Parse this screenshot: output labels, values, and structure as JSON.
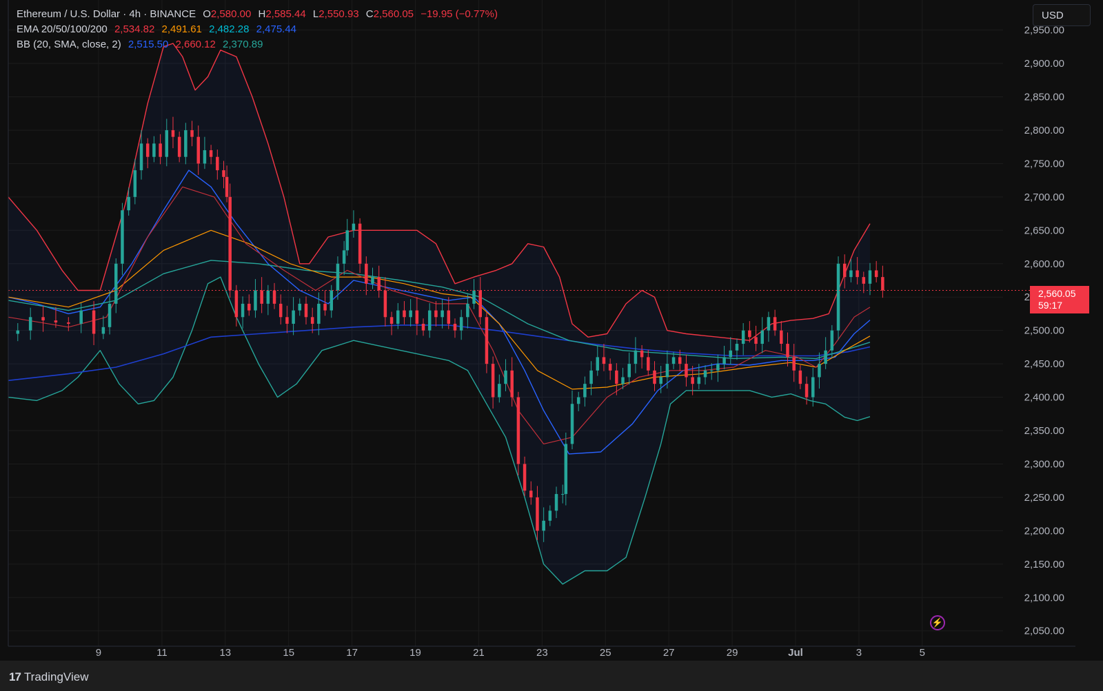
{
  "header": {
    "symbol": "Ethereum / U.S. Dollar · 4h · BINANCE",
    "open_label": "O",
    "open": "2,580.00",
    "high_label": "H",
    "high": "2,585.44",
    "low_label": "L",
    "low": "2,550.93",
    "close_label": "C",
    "close": "2,560.05",
    "change": "−19.95 (−0.77%)",
    "ema_label": "EMA 20/50/100/200",
    "ema20": "2,534.82",
    "ema50": "2,491.61",
    "ema100": "2,482.28",
    "ema200": "2,475.44",
    "bb_label": "BB (20, SMA, close, 2)",
    "bb_basis": "2,515.50",
    "bb_upper": "2,660.12",
    "bb_lower": "2,370.89"
  },
  "currency": "USD",
  "price_badge": {
    "price": "2,560.05",
    "countdown": "59:17"
  },
  "brand": {
    "logo_glyph": "17",
    "name": "TradingView"
  },
  "colors": {
    "up": "#26a69a",
    "down": "#f23645",
    "ema20": "#f23645",
    "ema50": "#ff9800",
    "ema100": "#00bcd4",
    "ema200": "#2962ff",
    "bb_basis": "#2962ff",
    "bb_upper": "#f23645",
    "bb_lower": "#26a69a"
  },
  "chart_data": {
    "type": "candlestick",
    "x_ticks": [
      {
        "label": "9",
        "t": 0.95
      },
      {
        "label": "11",
        "t": 2.95
      },
      {
        "label": "13",
        "t": 4.95
      },
      {
        "label": "15",
        "t": 6.95
      },
      {
        "label": "17",
        "t": 8.95
      },
      {
        "label": "19",
        "t": 10.95
      },
      {
        "label": "21",
        "t": 12.95
      },
      {
        "label": "23",
        "t": 14.95
      },
      {
        "label": "25",
        "t": 16.95
      },
      {
        "label": "27",
        "t": 18.95
      },
      {
        "label": "29",
        "t": 20.95
      },
      {
        "label": "Jul",
        "t": 22.95
      },
      {
        "label": "3",
        "t": 24.95
      },
      {
        "label": "5",
        "t": 26.95
      }
    ],
    "y_ticks": [
      "2,050.00",
      "2,100.00",
      "2,150.00",
      "2,200.00",
      "2,250.00",
      "2,300.00",
      "2,350.00",
      "2,400.00",
      "2,450.00",
      "2,500.00",
      "2,550.00",
      "2,600.00",
      "2,650.00",
      "2,700.00",
      "2,750.00",
      "2,800.00",
      "2,850.00",
      "2,900.00",
      "2,950.00"
    ],
    "y_range": [
      2027,
      2995
    ],
    "x_range": [
      -1.9,
      29.5
    ],
    "last_price": 2560.05,
    "closes": [
      [
        -1.9,
        2495
      ],
      [
        -1.6,
        2500
      ],
      [
        -1.2,
        2520
      ],
      [
        -0.8,
        2515
      ],
      [
        -0.4,
        2512
      ],
      [
        0,
        2510
      ],
      [
        0.4,
        2530
      ],
      [
        0.8,
        2495
      ],
      [
        1.1,
        2505
      ],
      [
        1.3,
        2540
      ],
      [
        1.5,
        2600
      ],
      [
        1.7,
        2680
      ],
      [
        1.9,
        2700
      ],
      [
        2.1,
        2740
      ],
      [
        2.3,
        2780
      ],
      [
        2.5,
        2760
      ],
      [
        2.7,
        2780
      ],
      [
        2.9,
        2760
      ],
      [
        3.1,
        2800
      ],
      [
        3.3,
        2790
      ],
      [
        3.5,
        2760
      ],
      [
        3.7,
        2800
      ],
      [
        3.9,
        2790
      ],
      [
        4.1,
        2750
      ],
      [
        4.3,
        2770
      ],
      [
        4.5,
        2760
      ],
      [
        4.7,
        2740
      ],
      [
        4.9,
        2730
      ],
      [
        5.0,
        2700
      ],
      [
        5.1,
        2560
      ],
      [
        5.3,
        2520
      ],
      [
        5.5,
        2540
      ],
      [
        5.7,
        2530
      ],
      [
        5.9,
        2560
      ],
      [
        6.1,
        2540
      ],
      [
        6.3,
        2560
      ],
      [
        6.5,
        2540
      ],
      [
        6.7,
        2520
      ],
      [
        6.9,
        2510
      ],
      [
        7.1,
        2530
      ],
      [
        7.3,
        2540
      ],
      [
        7.5,
        2520
      ],
      [
        7.7,
        2510
      ],
      [
        7.9,
        2540
      ],
      [
        8.1,
        2530
      ],
      [
        8.3,
        2560
      ],
      [
        8.5,
        2600
      ],
      [
        8.7,
        2620
      ],
      [
        8.8,
        2650
      ],
      [
        9.0,
        2660
      ],
      [
        9.2,
        2600
      ],
      [
        9.4,
        2570
      ],
      [
        9.6,
        2580
      ],
      [
        9.8,
        2560
      ],
      [
        10.0,
        2520
      ],
      [
        10.2,
        2510
      ],
      [
        10.4,
        2530
      ],
      [
        10.6,
        2520
      ],
      [
        10.8,
        2530
      ],
      [
        11.0,
        2510
      ],
      [
        11.2,
        2500
      ],
      [
        11.4,
        2530
      ],
      [
        11.6,
        2520
      ],
      [
        11.8,
        2530
      ],
      [
        12.0,
        2510
      ],
      [
        12.2,
        2500
      ],
      [
        12.4,
        2520
      ],
      [
        12.6,
        2540
      ],
      [
        12.8,
        2560
      ],
      [
        13.0,
        2520
      ],
      [
        13.2,
        2450
      ],
      [
        13.4,
        2400
      ],
      [
        13.6,
        2420
      ],
      [
        13.8,
        2440
      ],
      [
        14.0,
        2400
      ],
      [
        14.2,
        2300
      ],
      [
        14.4,
        2260
      ],
      [
        14.6,
        2250
      ],
      [
        14.8,
        2200
      ],
      [
        15.0,
        2215
      ],
      [
        15.2,
        2230
      ],
      [
        15.4,
        2255
      ],
      [
        15.6,
        2255
      ],
      [
        15.7,
        2330
      ],
      [
        15.9,
        2390
      ],
      [
        16.1,
        2400
      ],
      [
        16.3,
        2420
      ],
      [
        16.5,
        2440
      ],
      [
        16.7,
        2460
      ],
      [
        16.9,
        2450
      ],
      [
        17.1,
        2440
      ],
      [
        17.3,
        2420
      ],
      [
        17.5,
        2430
      ],
      [
        17.7,
        2450
      ],
      [
        17.9,
        2470
      ],
      [
        18.1,
        2460
      ],
      [
        18.3,
        2440
      ],
      [
        18.5,
        2420
      ],
      [
        18.7,
        2430
      ],
      [
        18.9,
        2450
      ],
      [
        19.1,
        2460
      ],
      [
        19.3,
        2450
      ],
      [
        19.5,
        2430
      ],
      [
        19.7,
        2420
      ],
      [
        19.9,
        2430
      ],
      [
        20.1,
        2440
      ],
      [
        20.3,
        2440
      ],
      [
        20.5,
        2450
      ],
      [
        20.7,
        2460
      ],
      [
        20.9,
        2470
      ],
      [
        21.1,
        2480
      ],
      [
        21.3,
        2500
      ],
      [
        21.5,
        2490
      ],
      [
        21.7,
        2480
      ],
      [
        21.9,
        2500
      ],
      [
        22.1,
        2520
      ],
      [
        22.3,
        2500
      ],
      [
        22.5,
        2480
      ],
      [
        22.7,
        2460
      ],
      [
        22.9,
        2440
      ],
      [
        23.1,
        2420
      ],
      [
        23.3,
        2400
      ],
      [
        23.5,
        2430
      ],
      [
        23.7,
        2450
      ],
      [
        23.9,
        2470
      ],
      [
        24.1,
        2500
      ],
      [
        24.3,
        2600
      ],
      [
        24.5,
        2580
      ],
      [
        24.7,
        2590
      ],
      [
        24.9,
        2580
      ],
      [
        25.1,
        2570
      ],
      [
        25.3,
        2590
      ],
      [
        25.5,
        2580
      ],
      [
        25.7,
        2560
      ]
    ],
    "ema20": [
      [
        -1.9,
        2520
      ],
      [
        0,
        2505
      ],
      [
        1.2,
        2520
      ],
      [
        2.5,
        2640
      ],
      [
        3.6,
        2715
      ],
      [
        4.6,
        2700
      ],
      [
        5.6,
        2630
      ],
      [
        6.8,
        2590
      ],
      [
        7.8,
        2560
      ],
      [
        8.8,
        2590
      ],
      [
        10.2,
        2560
      ],
      [
        11.6,
        2540
      ],
      [
        12.6,
        2540
      ],
      [
        13.4,
        2470
      ],
      [
        14.2,
        2380
      ],
      [
        15.0,
        2330
      ],
      [
        15.9,
        2340
      ],
      [
        17.0,
        2400
      ],
      [
        18.0,
        2430
      ],
      [
        19.0,
        2440
      ],
      [
        20.0,
        2440
      ],
      [
        21.0,
        2445
      ],
      [
        22.0,
        2470
      ],
      [
        23.0,
        2460
      ],
      [
        23.6,
        2445
      ],
      [
        24.2,
        2480
      ],
      [
        24.8,
        2520
      ],
      [
        25.3,
        2534.82
      ]
    ],
    "ema50": [
      [
        -1.9,
        2550
      ],
      [
        0,
        2535
      ],
      [
        1.5,
        2560
      ],
      [
        3.0,
        2620
      ],
      [
        4.5,
        2650
      ],
      [
        5.7,
        2630
      ],
      [
        7.0,
        2600
      ],
      [
        8.3,
        2580
      ],
      [
        9.5,
        2580
      ],
      [
        10.6,
        2570
      ],
      [
        11.8,
        2555
      ],
      [
        12.7,
        2550
      ],
      [
        13.6,
        2510
      ],
      [
        14.8,
        2440
      ],
      [
        15.9,
        2412
      ],
      [
        17.0,
        2415
      ],
      [
        18.5,
        2430
      ],
      [
        20.0,
        2435
      ],
      [
        21.5,
        2445
      ],
      [
        22.8,
        2452
      ],
      [
        23.6,
        2445
      ],
      [
        24.5,
        2470
      ],
      [
        25.3,
        2491.61
      ]
    ],
    "ema100": [
      [
        -1.9,
        2545
      ],
      [
        0,
        2530
      ],
      [
        1.5,
        2545
      ],
      [
        3.0,
        2585
      ],
      [
        4.5,
        2605
      ],
      [
        6.0,
        2600
      ],
      [
        7.5,
        2590
      ],
      [
        9.0,
        2585
      ],
      [
        10.5,
        2575
      ],
      [
        11.8,
        2565
      ],
      [
        13.0,
        2550
      ],
      [
        14.5,
        2510
      ],
      [
        15.8,
        2485
      ],
      [
        17.5,
        2470
      ],
      [
        19.0,
        2465
      ],
      [
        21.0,
        2458
      ],
      [
        22.5,
        2460
      ],
      [
        23.6,
        2458
      ],
      [
        24.6,
        2472
      ],
      [
        25.3,
        2482.28
      ]
    ],
    "ema200": [
      [
        -1.9,
        2425
      ],
      [
        0,
        2435
      ],
      [
        1.5,
        2445
      ],
      [
        3.0,
        2465
      ],
      [
        4.5,
        2490
      ],
      [
        6.0,
        2495
      ],
      [
        7.5,
        2500
      ],
      [
        9.0,
        2505
      ],
      [
        10.5,
        2508
      ],
      [
        12.0,
        2508
      ],
      [
        13.5,
        2500
      ],
      [
        15.0,
        2490
      ],
      [
        16.5,
        2480
      ],
      [
        18.0,
        2472
      ],
      [
        19.5,
        2466
      ],
      [
        21.0,
        2462
      ],
      [
        22.5,
        2462
      ],
      [
        23.6,
        2462
      ],
      [
        24.6,
        2468
      ],
      [
        25.3,
        2475.44
      ]
    ],
    "bb_upper": [
      [
        -1.9,
        2700
      ],
      [
        -1.0,
        2650
      ],
      [
        -0.2,
        2590
      ],
      [
        0.3,
        2560
      ],
      [
        1.0,
        2560
      ],
      [
        1.8,
        2690
      ],
      [
        2.5,
        2840
      ],
      [
        3.0,
        2925
      ],
      [
        3.3,
        2930
      ],
      [
        3.6,
        2910
      ],
      [
        4.0,
        2860
      ],
      [
        4.4,
        2880
      ],
      [
        4.8,
        2920
      ],
      [
        5.3,
        2910
      ],
      [
        5.8,
        2850
      ],
      [
        6.3,
        2780
      ],
      [
        6.8,
        2700
      ],
      [
        7.3,
        2600
      ],
      [
        7.6,
        2600
      ],
      [
        8.2,
        2640
      ],
      [
        9.0,
        2650
      ],
      [
        10.0,
        2650
      ],
      [
        11.0,
        2650
      ],
      [
        11.6,
        2630
      ],
      [
        12.2,
        2570
      ],
      [
        12.8,
        2580
      ],
      [
        13.5,
        2590
      ],
      [
        14.0,
        2600
      ],
      [
        14.5,
        2630
      ],
      [
        15.0,
        2625
      ],
      [
        15.5,
        2580
      ],
      [
        15.9,
        2510
      ],
      [
        16.4,
        2490
      ],
      [
        17.0,
        2495
      ],
      [
        17.6,
        2540
      ],
      [
        18.1,
        2560
      ],
      [
        18.5,
        2550
      ],
      [
        18.9,
        2500
      ],
      [
        19.5,
        2495
      ],
      [
        20.5,
        2490
      ],
      [
        21.5,
        2485
      ],
      [
        22.2,
        2510
      ],
      [
        22.8,
        2515
      ],
      [
        23.5,
        2518
      ],
      [
        24.0,
        2525
      ],
      [
        24.3,
        2560
      ],
      [
        24.8,
        2620
      ],
      [
        25.3,
        2660
      ]
    ],
    "bb_lower": [
      [
        -1.9,
        2400
      ],
      [
        -1.0,
        2395
      ],
      [
        -0.2,
        2410
      ],
      [
        0.3,
        2430
      ],
      [
        1.0,
        2470
      ],
      [
        1.6,
        2420
      ],
      [
        2.2,
        2390
      ],
      [
        2.7,
        2395
      ],
      [
        3.3,
        2430
      ],
      [
        3.9,
        2500
      ],
      [
        4.4,
        2570
      ],
      [
        4.8,
        2580
      ],
      [
        5.3,
        2520
      ],
      [
        6.0,
        2450
      ],
      [
        6.6,
        2400
      ],
      [
        7.2,
        2420
      ],
      [
        8.0,
        2470
      ],
      [
        9.0,
        2485
      ],
      [
        10.0,
        2475
      ],
      [
        11.0,
        2465
      ],
      [
        12.0,
        2455
      ],
      [
        12.6,
        2440
      ],
      [
        13.2,
        2390
      ],
      [
        13.8,
        2340
      ],
      [
        14.4,
        2250
      ],
      [
        15.0,
        2150
      ],
      [
        15.6,
        2120
      ],
      [
        16.3,
        2140
      ],
      [
        17.0,
        2140
      ],
      [
        17.6,
        2160
      ],
      [
        18.2,
        2250
      ],
      [
        18.7,
        2330
      ],
      [
        19.0,
        2390
      ],
      [
        19.5,
        2410
      ],
      [
        20.5,
        2410
      ],
      [
        21.5,
        2410
      ],
      [
        22.2,
        2400
      ],
      [
        22.8,
        2405
      ],
      [
        23.4,
        2395
      ],
      [
        23.9,
        2390
      ],
      [
        24.5,
        2370
      ],
      [
        24.9,
        2365
      ],
      [
        25.3,
        2370.89
      ]
    ],
    "bb_basis": [
      [
        -1.9,
        2550
      ],
      [
        -1.0,
        2540
      ],
      [
        0,
        2525
      ],
      [
        1.0,
        2535
      ],
      [
        2.0,
        2600
      ],
      [
        3.0,
        2680
      ],
      [
        3.8,
        2740
      ],
      [
        4.5,
        2715
      ],
      [
        5.3,
        2660
      ],
      [
        6.3,
        2600
      ],
      [
        7.3,
        2560
      ],
      [
        8.2,
        2540
      ],
      [
        9.0,
        2575
      ],
      [
        10.0,
        2565
      ],
      [
        11.0,
        2555
      ],
      [
        12.0,
        2545
      ],
      [
        12.8,
        2550
      ],
      [
        13.6,
        2510
      ],
      [
        14.4,
        2440
      ],
      [
        15.0,
        2380
      ],
      [
        15.8,
        2315
      ],
      [
        16.8,
        2318
      ],
      [
        17.8,
        2360
      ],
      [
        18.6,
        2410
      ],
      [
        19.4,
        2440
      ],
      [
        20.5,
        2450
      ],
      [
        21.5,
        2448
      ],
      [
        22.5,
        2455
      ],
      [
        23.5,
        2455
      ],
      [
        24.2,
        2460
      ],
      [
        24.8,
        2495
      ],
      [
        25.3,
        2515.5
      ]
    ]
  }
}
